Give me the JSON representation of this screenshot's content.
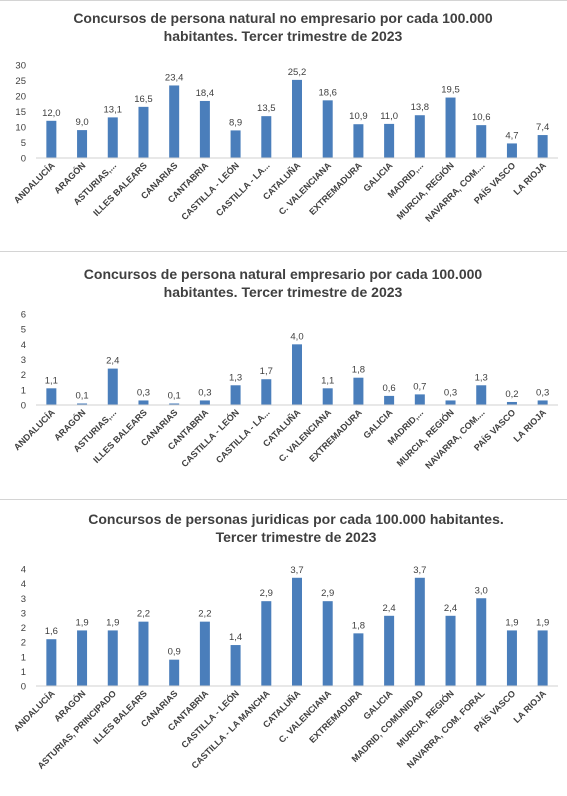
{
  "chart_data": [
    {
      "type": "bar",
      "title_lines": [
        "Concursos de persona natural no empresario por cada 100.000",
        "habitantes.  Tercer trimestre de 2023"
      ],
      "categories": [
        "ANDALUCÍA",
        "ARAGÓN",
        "ASTURIAS,...",
        "ILLES BALEARS",
        "CANARIAS",
        "CANTABRIA",
        "CASTILLA - LEÓN",
        "CASTILLA - LA...",
        "CATALUÑA",
        "C. VALENCIANA",
        "EXTREMADURA",
        "GALICIA",
        "MADRID,...",
        "MURCIA, REGIÓN",
        "NAVARRA, COM....",
        "PAÍS VASCO",
        "LA RIOJA"
      ],
      "values": [
        12.0,
        9.0,
        13.1,
        16.5,
        23.4,
        18.4,
        8.9,
        13.5,
        25.2,
        18.6,
        10.9,
        11.0,
        13.8,
        19.5,
        10.6,
        4.7,
        7.4
      ],
      "value_labels": [
        "12,0",
        "9,0",
        "13,1",
        "16,5",
        "23,4",
        "18,4",
        "8,9",
        "13,5",
        "25,2",
        "18,6",
        "10,9",
        "11,0",
        "13,8",
        "19,5",
        "10,6",
        "4,7",
        "7,4"
      ],
      "y_ticks": [
        "0",
        "5",
        "10",
        "15",
        "20",
        "25",
        "30"
      ],
      "ylim": [
        0,
        30
      ],
      "grid": false,
      "bar_color": "#4a7ebb"
    },
    {
      "type": "bar",
      "title_lines": [
        "Concursos de persona natural empresario por cada 100.000",
        "habitantes. Tercer trimestre de 2023"
      ],
      "categories": [
        "ANDALUCÍA",
        "ARAGÓN",
        "ASTURIAS,...",
        "ILLES BALEARS",
        "CANARIAS",
        "CANTABRIA",
        "CASTILLA - LEÓN",
        "CASTILLA - LA...",
        "CATALUÑA",
        "C. VALENCIANA",
        "EXTREMADURA",
        "GALICIA",
        "MADRID,...",
        "MURCIA, REGIÓN",
        "NAVARRA, COM....",
        "PAÍS VASCO",
        "LA RIOJA"
      ],
      "values": [
        1.1,
        0.1,
        2.4,
        0.3,
        0.1,
        0.3,
        1.3,
        1.7,
        4.0,
        1.1,
        1.8,
        0.6,
        0.7,
        0.3,
        1.3,
        0.2,
        0.3
      ],
      "value_labels": [
        "1,1",
        "0,1",
        "2,4",
        "0,3",
        "0,1",
        "0,3",
        "1,3",
        "1,7",
        "4,0",
        "1,1",
        "1,8",
        "0,6",
        "0,7",
        "0,3",
        "1,3",
        "0,2",
        "0,3"
      ],
      "y_ticks": [
        "0",
        "1",
        "2",
        "3",
        "4",
        "5",
        "6"
      ],
      "ylim": [
        0,
        6
      ],
      "grid": false,
      "bar_color": "#4a7ebb"
    },
    {
      "type": "bar",
      "title_lines": [
        "Concursos de personas juridicas por cada 100.000 habitantes.",
        "Tercer trimestre de 2023"
      ],
      "categories": [
        "ANDALUCÍA",
        "ARAGÓN",
        "ASTURIAS, PRINCIPADO",
        "ILLES BALEARS",
        "CANARIAS",
        "CANTABRIA",
        "CASTILLA - LEÓN",
        "CASTILLA - LA MANCHA",
        "CATALUÑA",
        "C. VALENCIANA",
        "EXTREMADURA",
        "GALICIA",
        "MADRID, COMUNIDAD",
        "MURCIA, REGIÓN",
        "NAVARRA, COM. FORAL",
        "PAÍS VASCO",
        "LA RIOJA"
      ],
      "values": [
        1.6,
        1.9,
        1.9,
        2.2,
        0.9,
        2.2,
        1.4,
        2.9,
        3.7,
        2.9,
        1.8,
        2.4,
        3.7,
        2.4,
        3.0,
        1.9,
        1.9
      ],
      "value_labels": [
        "1,6",
        "1,9",
        "1,9",
        "2,2",
        "0,9",
        "2,2",
        "1,4",
        "2,9",
        "3,7",
        "2,9",
        "1,8",
        "2,4",
        "3,7",
        "2,4",
        "3,0",
        "1,9",
        "1,9"
      ],
      "y_ticks": [
        "0",
        "1",
        "1",
        "2",
        "2",
        "3",
        "3",
        "4",
        "4"
      ],
      "ylim": [
        0,
        4
      ],
      "grid": false,
      "bar_color": "#4a7ebb"
    }
  ]
}
